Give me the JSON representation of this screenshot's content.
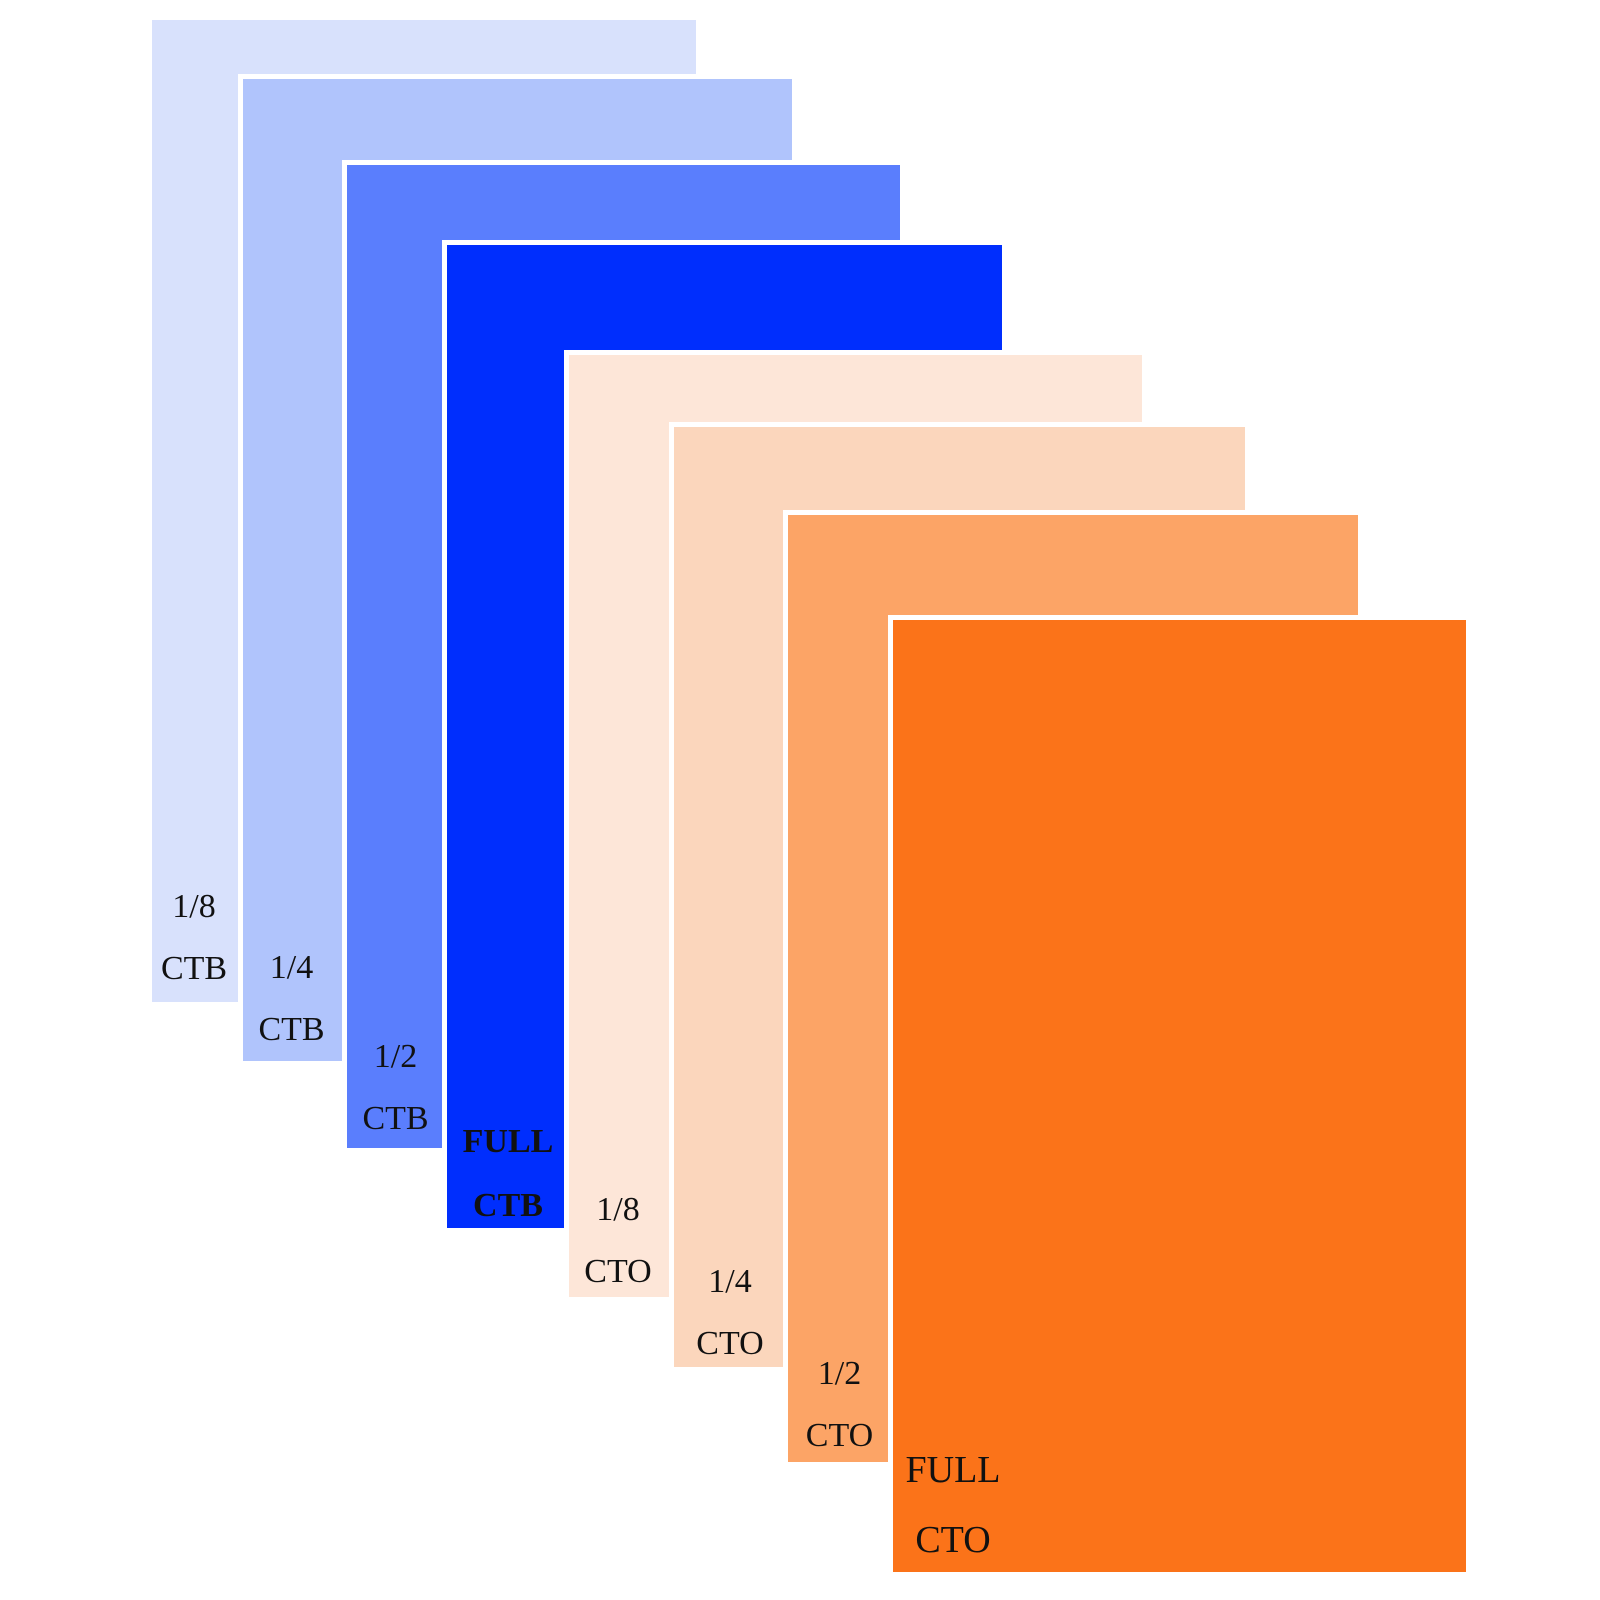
{
  "gels": [
    {
      "fraction": "1/8",
      "type": "CTB",
      "color": "#d8e1fc",
      "bold": false
    },
    {
      "fraction": "1/4",
      "type": "CTB",
      "color": "#b0c4fc",
      "bold": false
    },
    {
      "fraction": "1/2",
      "type": "CTB",
      "color": "#5a7efd",
      "bold": false
    },
    {
      "fraction": "FULL",
      "type": "CTB",
      "color": "#002efd",
      "bold": true
    },
    {
      "fraction": "1/8",
      "type": "CTO",
      "color": "#fde6d8",
      "bold": false
    },
    {
      "fraction": "1/4",
      "type": "CTO",
      "color": "#fbd6bc",
      "bold": false
    },
    {
      "fraction": "1/2",
      "type": "CTO",
      "color": "#fca466",
      "bold": false
    },
    {
      "fraction": "FULL",
      "type": "CTO",
      "color": "#fb7319",
      "bold": false
    }
  ]
}
